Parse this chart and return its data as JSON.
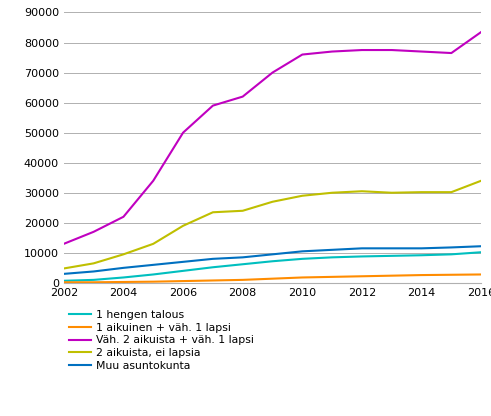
{
  "years": [
    2002,
    2003,
    2004,
    2005,
    2006,
    2007,
    2008,
    2009,
    2010,
    2011,
    2012,
    2013,
    2014,
    2015,
    2016
  ],
  "series": {
    "1 hengen talous": [
      700,
      1000,
      1800,
      2800,
      4000,
      5200,
      6200,
      7200,
      8000,
      8500,
      8800,
      9000,
      9200,
      9500,
      10200
    ],
    "1 aikuinen + väh. 1 lapsi": [
      200,
      200,
      300,
      400,
      600,
      800,
      1000,
      1400,
      1800,
      2000,
      2200,
      2400,
      2600,
      2700,
      2800
    ],
    "Väh. 2 aikuista + väh. 1 lapsi": [
      13000,
      17000,
      22000,
      34000,
      50000,
      59000,
      62000,
      70000,
      76000,
      77000,
      77500,
      77500,
      77000,
      76500,
      83500
    ],
    "2 aikuista, ei lapsia": [
      4800,
      6500,
      9500,
      13000,
      19000,
      23500,
      24000,
      27000,
      29000,
      30000,
      30500,
      30000,
      30200,
      30200,
      34000
    ],
    "Muu asuntokunta": [
      3000,
      3800,
      5000,
      6000,
      7000,
      8000,
      8500,
      9500,
      10500,
      11000,
      11500,
      11500,
      11500,
      11800,
      12200
    ]
  },
  "colors": {
    "1 hengen talous": "#00BFBF",
    "1 aikuinen + väh. 1 lapsi": "#FF8C00",
    "Väh. 2 aikuista + väh. 1 lapsi": "#C000C0",
    "2 aikuista, ei lapsia": "#BFBF00",
    "Muu asuntokunta": "#0070C0"
  },
  "ylim": [
    0,
    90000
  ],
  "yticks": [
    0,
    10000,
    20000,
    30000,
    40000,
    50000,
    60000,
    70000,
    80000,
    90000
  ],
  "xticks": [
    2002,
    2004,
    2006,
    2008,
    2010,
    2012,
    2014,
    2016
  ],
  "background_color": "#ffffff",
  "grid_color": "#b0b0b0",
  "linewidth": 1.5
}
